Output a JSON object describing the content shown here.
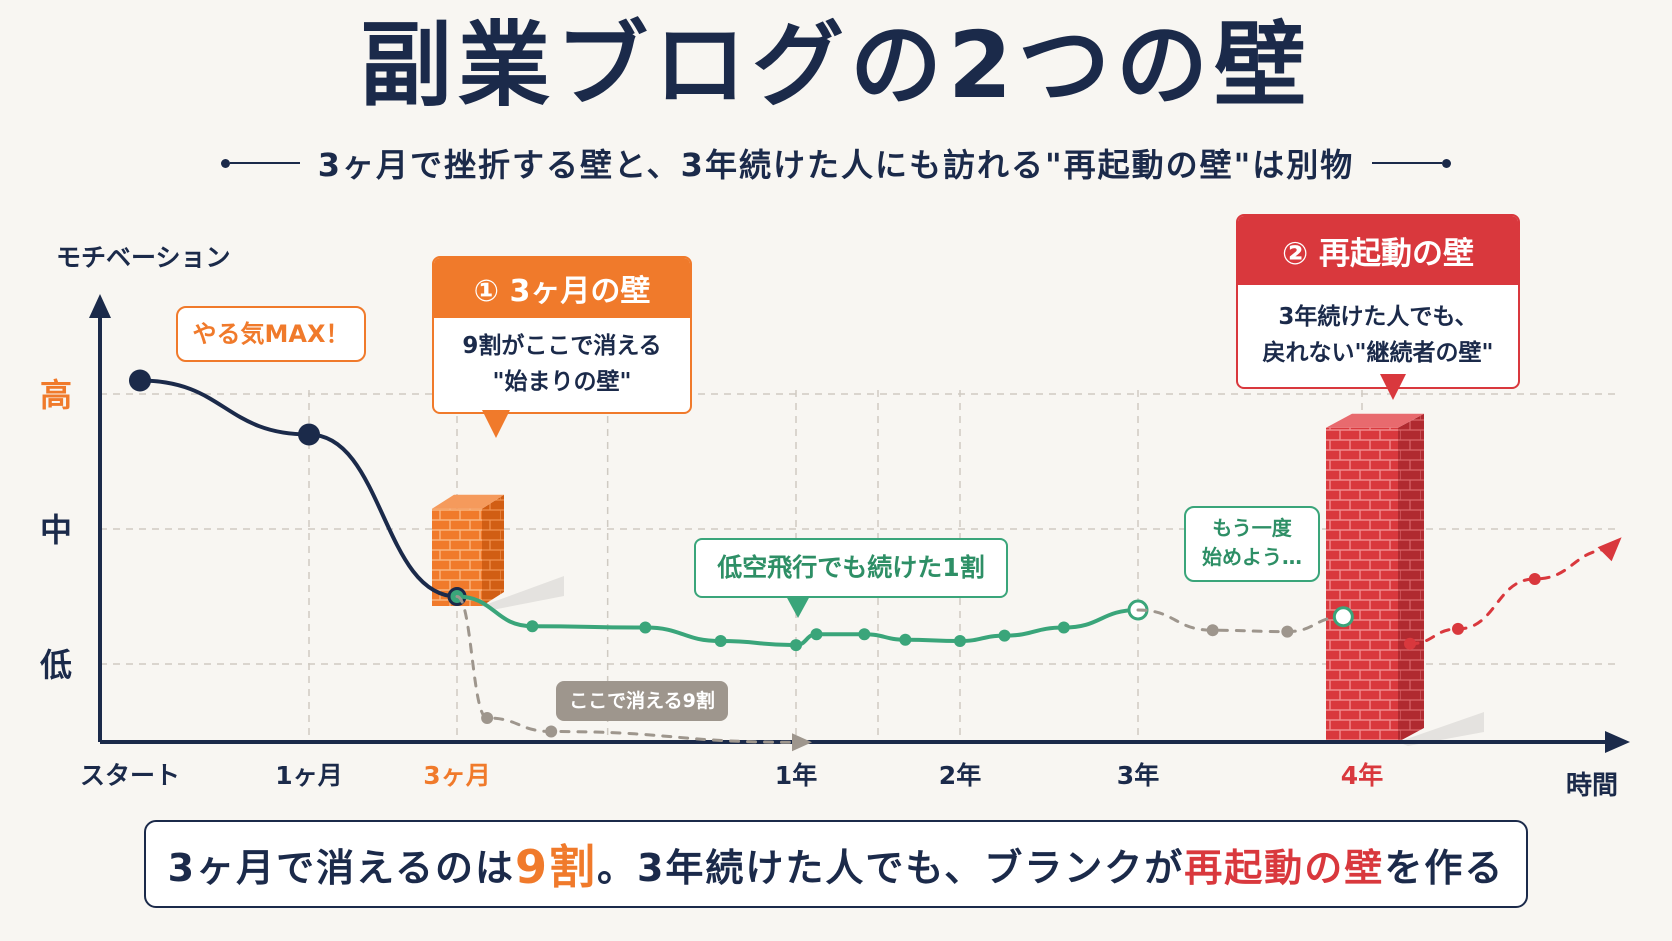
{
  "title": "副業ブログの2つの壁",
  "subtitle": "3ヶ月で挫折する壁と、3年続けた人にも訪れる\"再起動の壁\"は別物",
  "colors": {
    "navy": "#1b2a4a",
    "orange": "#f07a2b",
    "red": "#d9383d",
    "green": "#3aa57a",
    "gray": "#9e968d"
  },
  "chart_data": {
    "type": "line",
    "ylabel": "モチベーション",
    "xlabel": "時間",
    "y_ticks": [
      {
        "label": "高",
        "level": 3,
        "color": "#f07a2b"
      },
      {
        "label": "中",
        "level": 2,
        "color": "#1b2a4a"
      },
      {
        "label": "低",
        "level": 1,
        "color": "#1b2a4a"
      }
    ],
    "ylim": [
      0,
      3.6
    ],
    "x_ticks": [
      {
        "label": "スタート",
        "month": 0,
        "color": "#1b2a4a"
      },
      {
        "label": "1ヶ月",
        "month": 1,
        "color": "#1b2a4a"
      },
      {
        "label": "3ヶ月",
        "month": 3,
        "color": "#f07a2b"
      },
      {
        "label": "1年",
        "month": 12,
        "color": "#1b2a4a"
      },
      {
        "label": "2年",
        "month": 24,
        "color": "#1b2a4a"
      },
      {
        "label": "3年",
        "month": 36,
        "color": "#1b2a4a"
      },
      {
        "label": "4年",
        "month": 48,
        "color": "#d9383d"
      }
    ],
    "series": [
      {
        "color": "#1b2a4a",
        "style": "solid",
        "points": [
          [
            0,
            3.1
          ],
          [
            1,
            2.7
          ],
          [
            3,
            1.5
          ]
        ]
      },
      {
        "color": "#3aa57a",
        "style": "solid",
        "points": [
          [
            3,
            1.5
          ],
          [
            5,
            1.28
          ],
          [
            8,
            1.27
          ],
          [
            10,
            1.17
          ],
          [
            12,
            1.14
          ],
          [
            13.5,
            1.22
          ],
          [
            17,
            1.22
          ],
          [
            20,
            1.18
          ],
          [
            24,
            1.17
          ],
          [
            27,
            1.21
          ],
          [
            31,
            1.27
          ],
          [
            36,
            1.4
          ]
        ]
      },
      {
        "color": "#9e968d",
        "style": "dashed",
        "points": [
          [
            3,
            1.5
          ],
          [
            3.8,
            0.6
          ],
          [
            5.5,
            0.5
          ],
          [
            12,
            0.42
          ]
        ]
      },
      {
        "color": "#9e968d",
        "style": "dashed",
        "points": [
          [
            36,
            1.4
          ],
          [
            40,
            1.25
          ],
          [
            44,
            1.24
          ],
          [
            47,
            1.35
          ]
        ]
      },
      {
        "color": "#d9383d",
        "style": "dashed",
        "points": [
          [
            50.5,
            1.15
          ],
          [
            53,
            1.26
          ],
          [
            57,
            1.63
          ],
          [
            61,
            1.85
          ]
        ]
      }
    ],
    "walls": [
      {
        "month": 3,
        "color": "#f07a2b",
        "top_level": 2.15
      },
      {
        "month": 48,
        "color": "#d9383d",
        "top_level": 2.75
      }
    ],
    "grid": true
  },
  "annotations": {
    "wall1": {
      "title": "① 3ヶ月の壁",
      "lines": [
        "9割がここで消える",
        "\"始まりの壁\""
      ]
    },
    "wall2": {
      "title": "② 再起動の壁",
      "lines": [
        "3年続けた人でも、",
        "戻れない\"継続者の壁\""
      ]
    },
    "max": "やる気MAX！",
    "continue": "低空飛行でも続けた1割",
    "restart": [
      "もう一度",
      "始めよう…"
    ],
    "drop": "ここで消える9割"
  },
  "bottom": {
    "part1": "3ヶ月で消えるのは",
    "part2": "9割",
    "part3": "。3年続けた人でも、ブランクが",
    "part4": "再起動の壁",
    "part5": "を作る"
  }
}
